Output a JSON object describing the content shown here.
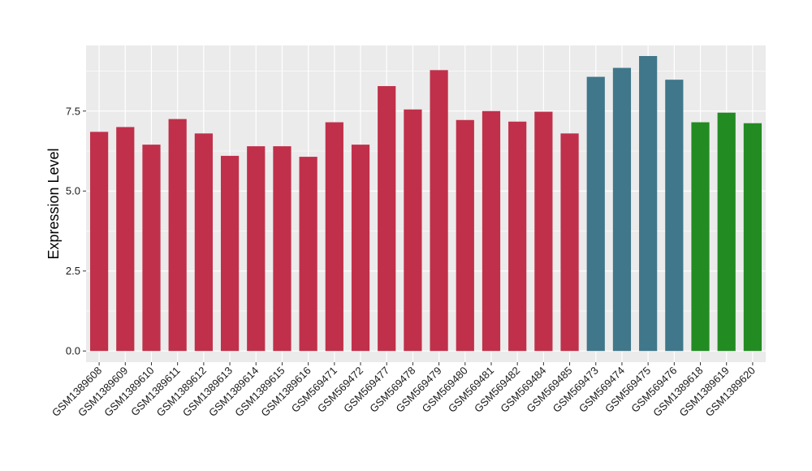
{
  "chart_data": {
    "type": "bar",
    "title": "",
    "xlabel": "",
    "ylabel": "Expression Level",
    "ylim": [
      -0.35,
      9.55
    ],
    "yticks": [
      0.0,
      2.5,
      5.0,
      7.5
    ],
    "ytick_labels": [
      "0.0",
      "2.5",
      "5.0",
      "7.5"
    ],
    "grid": true,
    "legend": "none",
    "background": "#EBEBEB",
    "gridline_color": "#FFFFFF",
    "categories": [
      "GSM1389608",
      "GSM1389609",
      "GSM1389610",
      "GSM1389611",
      "GSM1389612",
      "GSM1389613",
      "GSM1389614",
      "GSM1389615",
      "GSM1389616",
      "GSM569471",
      "GSM569472",
      "GSM569477",
      "GSM569478",
      "GSM569479",
      "GSM569480",
      "GSM569481",
      "GSM569482",
      "GSM569484",
      "GSM569485",
      "GSM569473",
      "GSM569474",
      "GSM569475",
      "GSM569476",
      "GSM1389618",
      "GSM1389619",
      "GSM1389620"
    ],
    "values": [
      6.85,
      7.0,
      6.45,
      7.25,
      6.8,
      6.1,
      6.4,
      6.4,
      6.07,
      7.15,
      6.45,
      8.28,
      7.55,
      8.78,
      7.22,
      7.5,
      7.17,
      7.48,
      6.8,
      8.57,
      8.85,
      9.22,
      8.48,
      7.15,
      7.45,
      7.12
    ],
    "colors": [
      "#C0304A",
      "#C0304A",
      "#C0304A",
      "#C0304A",
      "#C0304A",
      "#C0304A",
      "#C0304A",
      "#C0304A",
      "#C0304A",
      "#C0304A",
      "#C0304A",
      "#C0304A",
      "#C0304A",
      "#C0304A",
      "#C0304A",
      "#C0304A",
      "#C0304A",
      "#C0304A",
      "#C0304A",
      "#40778A",
      "#40778A",
      "#40778A",
      "#40778A",
      "#228B22",
      "#228B22",
      "#228B22"
    ]
  }
}
